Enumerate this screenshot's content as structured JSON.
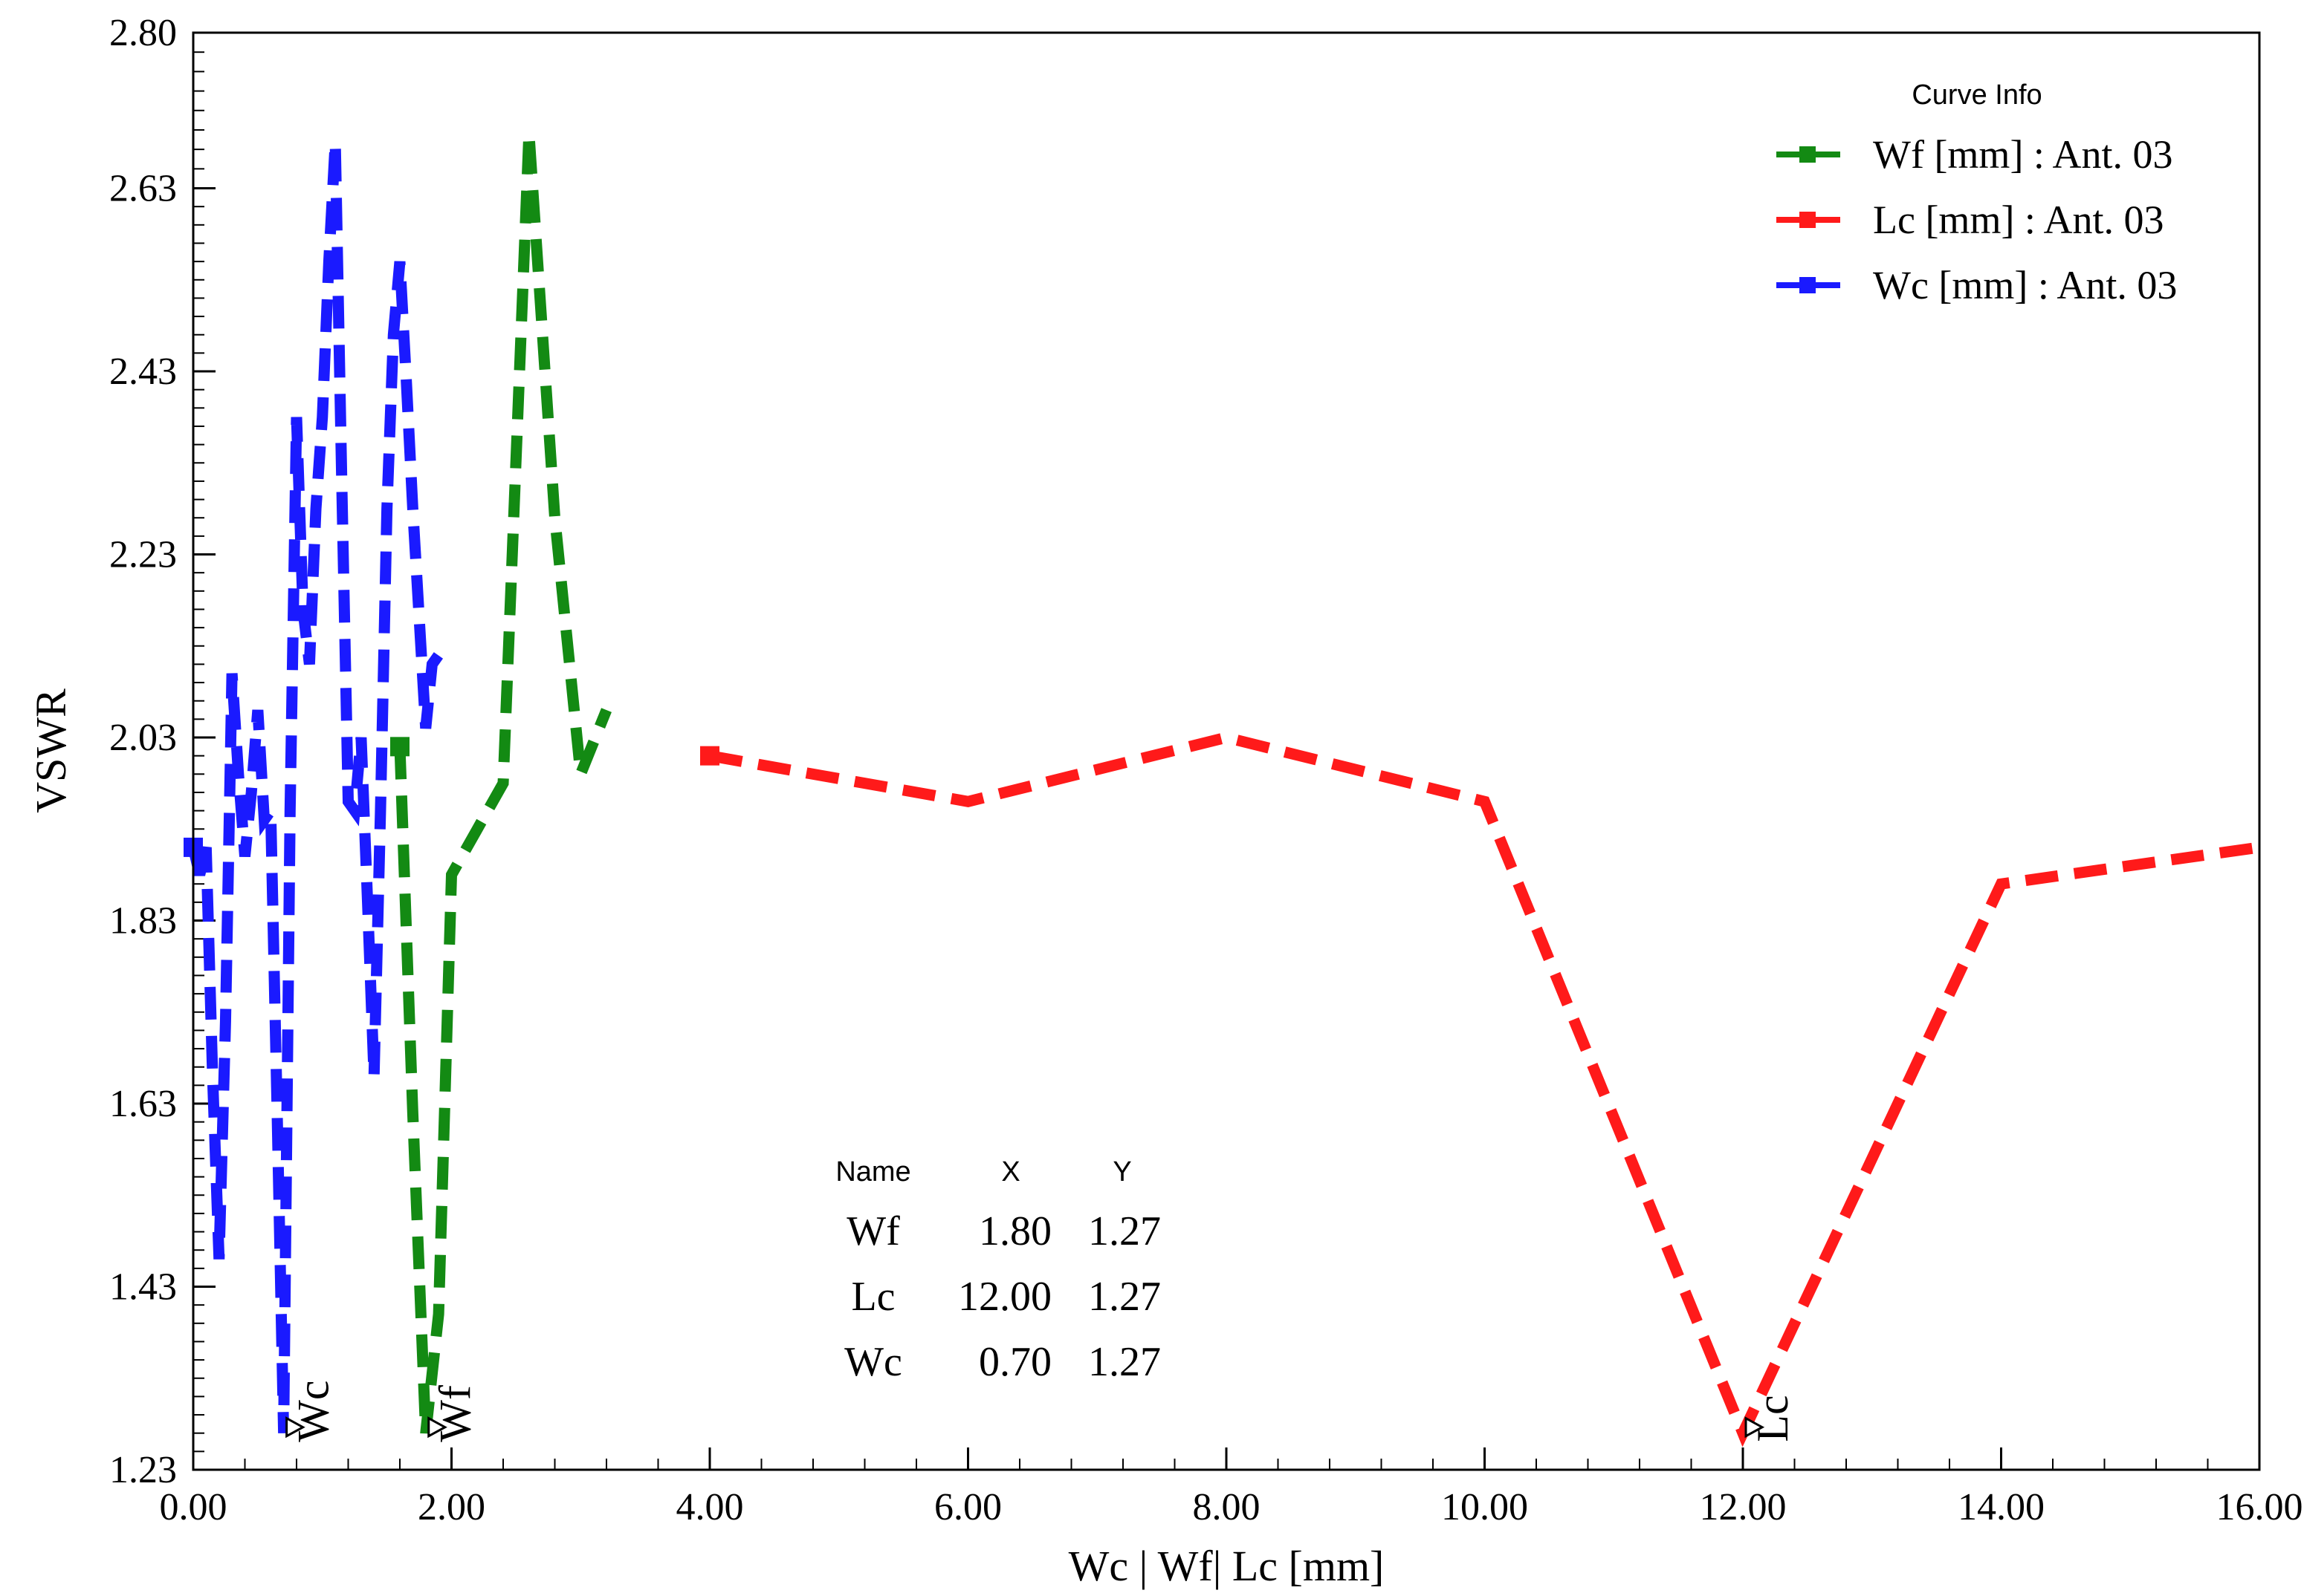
{
  "chart_data": {
    "type": "line",
    "xlabel": "Wc | Wf| Lc [mm]",
    "ylabel": "VSWR",
    "xlim": [
      0,
      16
    ],
    "ylim": [
      1.23,
      2.8
    ],
    "x_ticks": [
      "0.00",
      "2.00",
      "4.00",
      "6.00",
      "8.00",
      "10.00",
      "12.00",
      "14.00",
      "16.00"
    ],
    "y_ticks": [
      "1.23",
      "1.43",
      "1.63",
      "1.83",
      "2.03",
      "2.23",
      "2.43",
      "2.63",
      "2.80"
    ],
    "legend_title": "Curve Info",
    "legend_position": "top-right",
    "series": [
      {
        "name": "Wf [mm] : Ant. 03",
        "color": "#138a13",
        "x": [
          1.6,
          1.7,
          1.8,
          1.9,
          2.0,
          2.2,
          2.4,
          2.6,
          2.8,
          3.0,
          3.2
        ],
        "y": [
          2.02,
          1.62,
          1.27,
          1.4,
          1.88,
          1.93,
          1.98,
          2.69,
          2.27,
          1.99,
          2.06
        ]
      },
      {
        "name": "Lc [mm] : Ant. 03",
        "color": "#ff1a1a",
        "x": [
          4,
          6,
          8,
          10,
          12,
          14,
          16
        ],
        "y": [
          2.01,
          1.96,
          2.03,
          1.96,
          1.27,
          1.87,
          1.91
        ]
      },
      {
        "name": "Wc [mm] : Ant. 03",
        "color": "#1a1aff",
        "x": [
          0.0,
          0.05,
          0.1,
          0.15,
          0.2,
          0.25,
          0.3,
          0.35,
          0.4,
          0.45,
          0.5,
          0.55,
          0.6,
          0.65,
          0.7,
          0.75,
          0.8,
          0.85,
          0.9,
          0.95,
          1.0,
          1.05,
          1.1,
          1.15,
          1.2,
          1.25,
          1.3,
          1.35,
          1.4,
          1.45,
          1.5,
          1.55,
          1.6,
          1.65,
          1.7,
          1.75,
          1.8,
          1.85,
          1.9,
          1.95,
          2.0
        ],
        "y": [
          1.91,
          1.88,
          1.91,
          1.66,
          1.46,
          1.72,
          2.1,
          1.99,
          1.9,
          1.97,
          2.06,
          1.94,
          1.95,
          1.62,
          1.27,
          1.95,
          2.38,
          2.17,
          2.11,
          2.28,
          2.38,
          2.55,
          2.68,
          2.31,
          1.96,
          1.95,
          2.03,
          1.85,
          1.66,
          1.95,
          2.28,
          2.47,
          2.55,
          2.42,
          2.28,
          2.16,
          2.04,
          2.11,
          2.12,
          2.12,
          2.12
        ]
      }
    ],
    "markers": [
      {
        "label": "Wc",
        "x": 0.7,
        "y": 1.27
      },
      {
        "label": "Wf",
        "x": 1.8,
        "y": 1.27
      },
      {
        "label": "Lc",
        "x": 12.0,
        "y": 1.27
      }
    ],
    "marker_table": {
      "headers": [
        "Name",
        "X",
        "Y"
      ],
      "rows": [
        [
          "Wf",
          "1.80",
          "1.27"
        ],
        [
          "Lc",
          "12.00",
          "1.27"
        ],
        [
          "Wc",
          "0.70",
          "1.27"
        ]
      ]
    }
  }
}
